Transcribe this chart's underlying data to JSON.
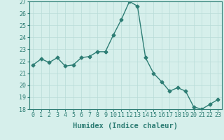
{
  "x": [
    0,
    1,
    2,
    3,
    4,
    5,
    6,
    7,
    8,
    9,
    10,
    11,
    12,
    13,
    14,
    15,
    16,
    17,
    18,
    19,
    20,
    21,
    22,
    23
  ],
  "y": [
    21.7,
    22.2,
    21.9,
    22.3,
    21.6,
    21.7,
    22.3,
    22.4,
    22.8,
    22.8,
    24.2,
    25.5,
    27.0,
    26.6,
    22.3,
    21.0,
    20.3,
    19.5,
    19.8,
    19.5,
    18.2,
    18.0,
    18.4,
    18.8
  ],
  "line_color": "#2d7d74",
  "marker": "D",
  "markersize": 2.5,
  "linewidth": 1.0,
  "xlabel": "Humidex (Indice chaleur)",
  "xlabel_fontsize": 7.5,
  "ylim": [
    18,
    27
  ],
  "xlim": [
    -0.5,
    23.5
  ],
  "yticks": [
    18,
    19,
    20,
    21,
    22,
    23,
    24,
    25,
    26,
    27
  ],
  "xticks": [
    0,
    1,
    2,
    3,
    4,
    5,
    6,
    7,
    8,
    9,
    10,
    11,
    12,
    13,
    14,
    15,
    16,
    17,
    18,
    19,
    20,
    21,
    22,
    23
  ],
  "background_color": "#d6efeb",
  "grid_color": "#b8dcd8",
  "tick_fontsize": 6.0
}
